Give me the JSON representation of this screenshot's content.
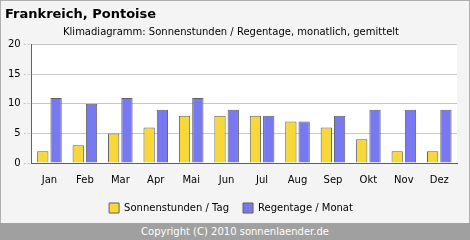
{
  "chart_data": {
    "type": "bar",
    "title": "Frankreich, Pontoise",
    "subtitle": "Klimadiagramm: Sonnenstunden / Regentage, monatlich, gemittelt",
    "categories": [
      "Jan",
      "Feb",
      "Mar",
      "Apr",
      "Mai",
      "Jun",
      "Jul",
      "Aug",
      "Sep",
      "Okt",
      "Nov",
      "Dez"
    ],
    "series": [
      {
        "name": "Sonnenstunden / Tag",
        "color": "#f8d838",
        "values": [
          2,
          3,
          5,
          6,
          8,
          8,
          8,
          7,
          6,
          4,
          2,
          2
        ]
      },
      {
        "name": "Regentage / Monat",
        "color": "#7878f0",
        "values": [
          11,
          10,
          11,
          9,
          11,
          9,
          8,
          7,
          8,
          9,
          9,
          9
        ]
      }
    ],
    "ylim": [
      0,
      20
    ],
    "yticks": [
      0,
      5,
      10,
      15,
      20
    ],
    "grid": true,
    "legend": "bottom",
    "annotations": [
      "Copyright (C) 2010 sonnenlaender.de"
    ]
  }
}
